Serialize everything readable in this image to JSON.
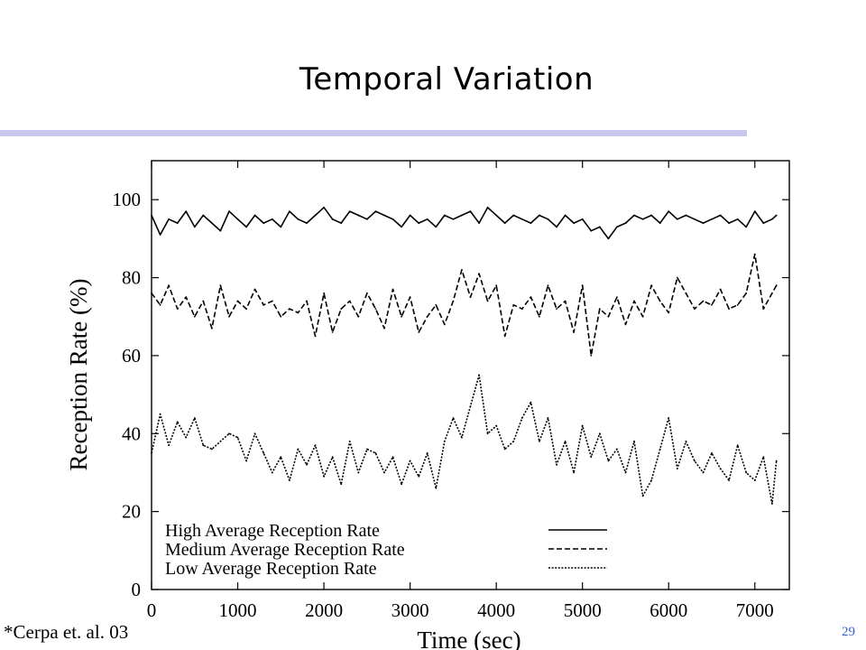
{
  "slide": {
    "title": "Temporal Variation",
    "citation": "*Cerpa et. al. 03",
    "page_number": "29",
    "accent_rule_color": "#c8c8ee",
    "page_number_color": "#3a5fcd"
  },
  "chart_data": {
    "type": "line",
    "title": "",
    "xlabel": "Time (sec)",
    "ylabel": "Reception Rate (%)",
    "xlim": [
      0,
      7400
    ],
    "ylim": [
      0,
      110
    ],
    "xticks": [
      0,
      1000,
      2000,
      3000,
      4000,
      5000,
      6000,
      7000
    ],
    "yticks": [
      0,
      20,
      40,
      60,
      80,
      100
    ],
    "grid": false,
    "legend_position": "bottom-left",
    "x": [
      0,
      100,
      200,
      300,
      400,
      500,
      600,
      700,
      800,
      900,
      1000,
      1100,
      1200,
      1300,
      1400,
      1500,
      1600,
      1700,
      1800,
      1900,
      2000,
      2100,
      2200,
      2300,
      2400,
      2500,
      2600,
      2700,
      2800,
      2900,
      3000,
      3100,
      3200,
      3300,
      3400,
      3500,
      3600,
      3700,
      3800,
      3900,
      4000,
      4100,
      4200,
      4300,
      4400,
      4500,
      4600,
      4700,
      4800,
      4900,
      5000,
      5100,
      5200,
      5300,
      5400,
      5500,
      5600,
      5700,
      5800,
      5900,
      6000,
      6100,
      6200,
      6300,
      6400,
      6500,
      6600,
      6700,
      6800,
      6900,
      7000,
      7100,
      7200,
      7250
    ],
    "series": [
      {
        "name": "High Average Reception Rate",
        "dash": "solid",
        "values": [
          96,
          91,
          95,
          94,
          97,
          93,
          96,
          94,
          92,
          97,
          95,
          93,
          96,
          94,
          95,
          93,
          97,
          95,
          94,
          96,
          98,
          95,
          94,
          97,
          96,
          95,
          97,
          96,
          95,
          93,
          96,
          94,
          95,
          93,
          96,
          95,
          96,
          97,
          94,
          98,
          96,
          94,
          96,
          95,
          94,
          96,
          95,
          93,
          96,
          94,
          95,
          92,
          93,
          90,
          93,
          94,
          96,
          95,
          96,
          94,
          97,
          95,
          96,
          95,
          94,
          95,
          96,
          94,
          95,
          93,
          97,
          94,
          95,
          96
        ]
      },
      {
        "name": "Medium Average Reception Rate",
        "dash": "dashed",
        "values": [
          76,
          73,
          78,
          72,
          75,
          70,
          74,
          67,
          78,
          70,
          74,
          72,
          77,
          73,
          74,
          70,
          72,
          71,
          74,
          65,
          76,
          66,
          72,
          74,
          70,
          76,
          72,
          67,
          77,
          70,
          75,
          66,
          70,
          73,
          68,
          74,
          82,
          75,
          81,
          74,
          78,
          65,
          73,
          72,
          75,
          70,
          78,
          72,
          74,
          66,
          78,
          60,
          72,
          70,
          75,
          68,
          74,
          70,
          78,
          74,
          71,
          80,
          76,
          72,
          74,
          73,
          77,
          72,
          73,
          76,
          86,
          72,
          76,
          78
        ]
      },
      {
        "name": "Low Average Reception Rate",
        "dash": "dotted",
        "values": [
          35,
          45,
          37,
          43,
          39,
          44,
          37,
          36,
          38,
          40,
          39,
          33,
          40,
          35,
          30,
          34,
          28,
          36,
          32,
          37,
          29,
          34,
          27,
          38,
          30,
          36,
          35,
          30,
          34,
          27,
          33,
          29,
          35,
          26,
          38,
          44,
          39,
          47,
          55,
          40,
          42,
          36,
          38,
          44,
          48,
          38,
          44,
          32,
          38,
          30,
          42,
          34,
          40,
          33,
          36,
          30,
          38,
          24,
          28,
          36,
          44,
          31,
          38,
          33,
          30,
          35,
          31,
          28,
          37,
          30,
          28,
          34,
          22,
          33
        ]
      }
    ]
  }
}
